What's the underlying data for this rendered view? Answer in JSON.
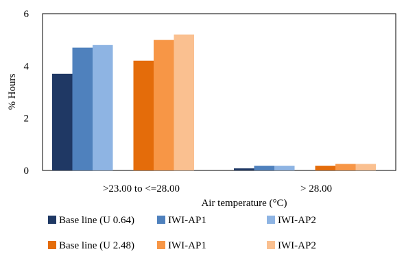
{
  "chart_data": {
    "type": "bar",
    "xlabel": "Air temperature (°C)",
    "ylabel": "% Hours",
    "ylim": [
      0,
      6
    ],
    "yticks": [
      0,
      2,
      4,
      6
    ],
    "grid": false,
    "legend_position": "bottom",
    "categories": [
      ">23.00 to <=28.00",
      "> 28.00"
    ],
    "series": [
      {
        "name": "Base line (U 0.64)",
        "color": "#1f3864",
        "values": [
          3.7,
          0.08
        ]
      },
      {
        "name": "IWI-AP1",
        "color": "#4f81bd",
        "values": [
          4.7,
          0.18
        ]
      },
      {
        "name": "IWI-AP2",
        "color": "#8eb4e3",
        "values": [
          4.8,
          0.18
        ]
      },
      {
        "name": "Base line (U 2.48)",
        "color": "#e46c0a",
        "values": [
          4.2,
          0.18
        ]
      },
      {
        "name": "IWI-AP1",
        "color": "#f79646",
        "values": [
          5.0,
          0.25
        ]
      },
      {
        "name": "IWI-AP2",
        "color": "#fac090",
        "values": [
          5.2,
          0.25
        ]
      }
    ]
  }
}
